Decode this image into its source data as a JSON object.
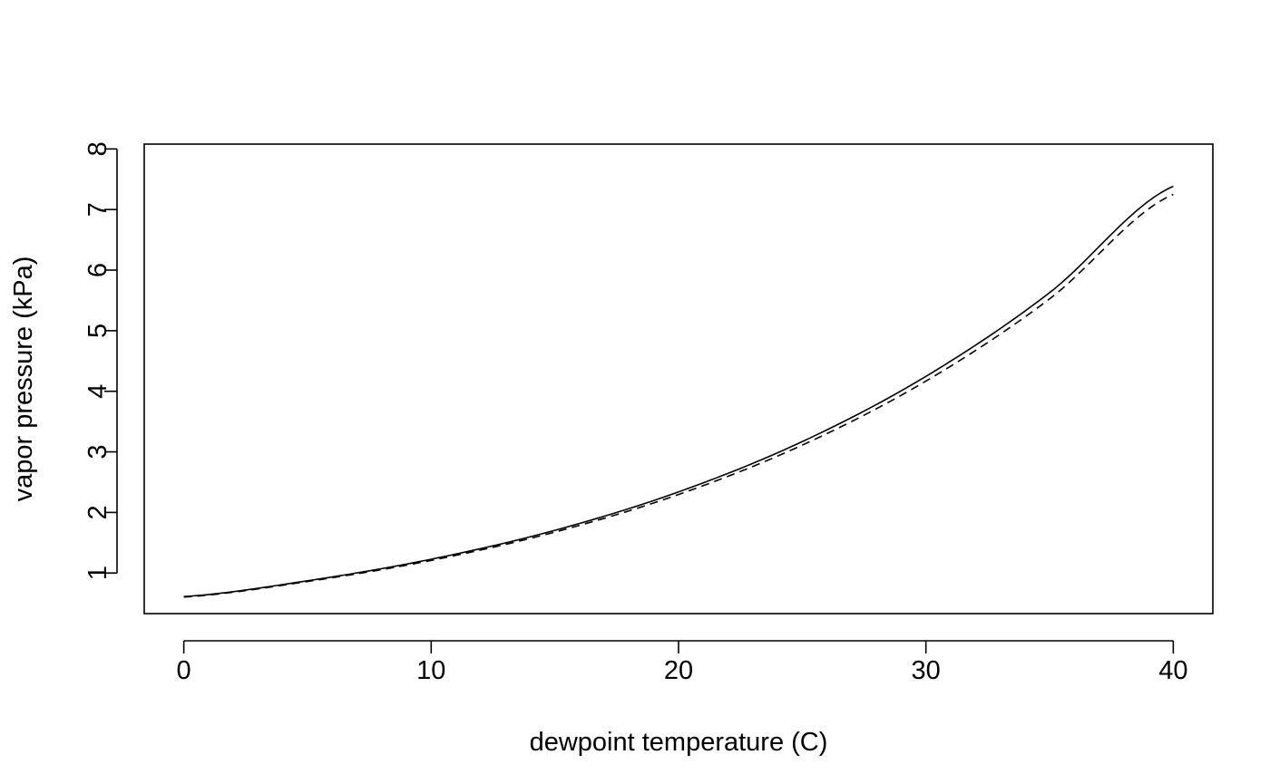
{
  "chart_data": {
    "type": "line",
    "title": "",
    "xlabel": "dewpoint temperature (C)",
    "ylabel": "vapor pressure (kPa)",
    "xlim": [
      -1.6,
      41.6
    ],
    "ylim": [
      0.33,
      8.08
    ],
    "xticks": [
      0,
      10,
      20,
      30,
      40
    ],
    "yticks": [
      1,
      2,
      3,
      4,
      5,
      6,
      7,
      8
    ],
    "grid": false,
    "legend": "none",
    "colors": {
      "line": "#000000",
      "axes": "#000000",
      "background": "#ffffff"
    },
    "x": [
      0,
      5,
      10,
      15,
      20,
      25,
      30,
      35,
      40
    ],
    "series": [
      {
        "style": "solid",
        "values": [
          0.611,
          0.872,
          1.228,
          1.705,
          2.339,
          3.169,
          4.246,
          5.628,
          7.384
        ]
      },
      {
        "style": "dashed",
        "values": [
          0.603,
          0.86,
          1.208,
          1.676,
          2.296,
          3.111,
          4.168,
          5.525,
          7.25
        ]
      }
    ]
  }
}
